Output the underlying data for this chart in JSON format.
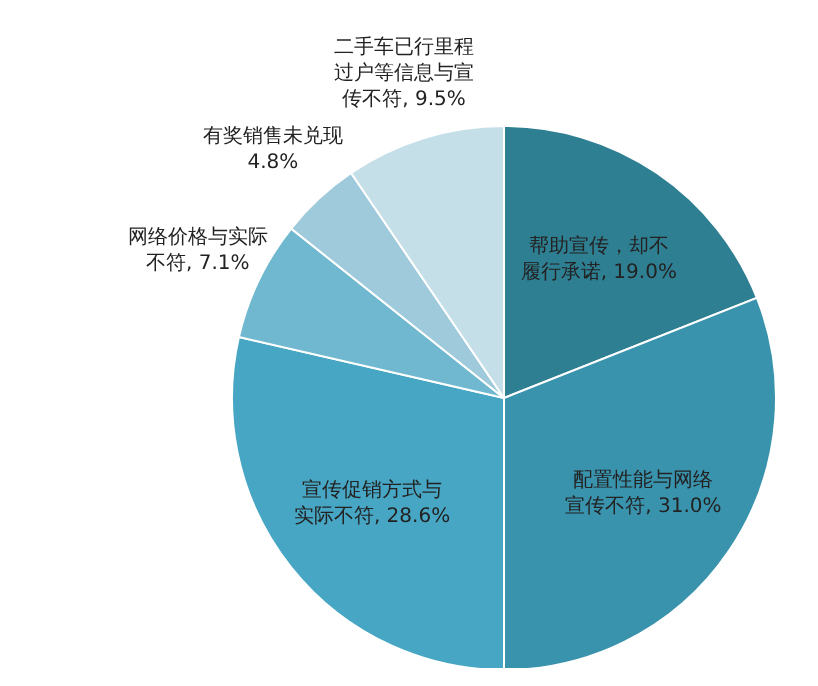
{
  "chart_data": {
    "type": "pie",
    "categories": [
      "帮助宣传，却不履行承诺",
      "配置性能与网络宣传不符",
      "宣传促销方式与实际不符",
      "网络价格与实际不符",
      "有奖销售未兑现",
      "二手车已行里程过户等信息与宣传不符"
    ],
    "values": [
      19.0,
      31.0,
      28.6,
      7.1,
      4.8,
      9.5
    ],
    "value_labels": [
      "19.0%",
      "31.0%",
      "28.6%",
      "7.1%",
      "4.8%",
      "9.5%"
    ],
    "colors": [
      "#2f7f93",
      "#3a93ad",
      "#47a6c3",
      "#70b8cf",
      "#9ecadb",
      "#c4dfe8"
    ]
  }
}
